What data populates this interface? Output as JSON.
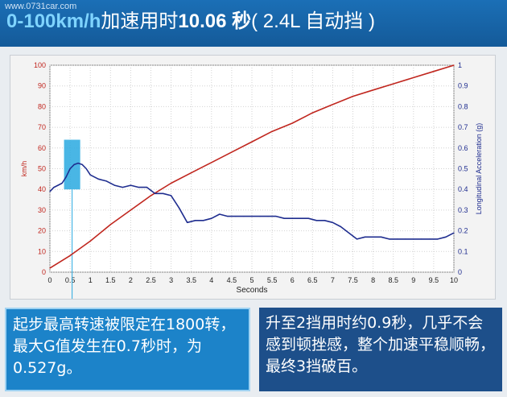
{
  "header": {
    "watermark": "www.0731car.com",
    "title_speed": "0-100km/h",
    "title_label": "加速用时",
    "title_time": "10.06 秒",
    "title_suffix": "( 2.4L 自动挡 )"
  },
  "captions": {
    "left": "起步最高转速被限定在1800转，最大G值发生在0.7秒时，为0.527g。",
    "right": "升至2挡用时约0.9秒，几乎不会感到顿挫感，整个加速平稳顺畅，最终3挡破百。"
  },
  "colors": {
    "speed_line": "#c0261e",
    "accel_line": "#1f2d8f",
    "left_axis": "#c0261e",
    "right_axis": "#1f2d8f",
    "highlight": "#29a9e0",
    "header_bg": "#1766a8"
  },
  "chart_data": {
    "type": "line",
    "xlabel": "Seconds",
    "ylabel_left": "km/h",
    "ylabel_right": "Longitudinal Acceleration (g)",
    "xlim": [
      0,
      10
    ],
    "ylim_left": [
      0,
      100
    ],
    "ylim_right": [
      0,
      1
    ],
    "x_ticks": [
      "0",
      "0.5",
      "1",
      "1.5",
      "2",
      "2.5",
      "3",
      "3.5",
      "4",
      "4.5",
      "5",
      "5.5",
      "6",
      "6.5",
      "7",
      "7.5",
      "8",
      "8.5",
      "9",
      "9.5",
      "10"
    ],
    "y_left_ticks": [
      "0",
      "10",
      "20",
      "30",
      "40",
      "50",
      "60",
      "70",
      "80",
      "90",
      "100"
    ],
    "y_right_ticks": [
      "0",
      "0.1",
      "0.2",
      "0.3",
      "0.4",
      "0.5",
      "0.6",
      "0.7",
      "0.8",
      "0.9",
      "1"
    ],
    "grid": true,
    "highlight": {
      "x_range": [
        0.35,
        0.75
      ],
      "y_range_right": [
        0.4,
        0.64
      ]
    },
    "series": [
      {
        "axis": "left",
        "x": [
          0,
          0.5,
          1,
          1.5,
          2,
          2.5,
          3,
          3.5,
          4,
          4.5,
          5,
          5.5,
          6,
          6.5,
          7,
          7.5,
          8,
          8.5,
          9,
          9.5,
          10
        ],
        "values": [
          2,
          8,
          15,
          23,
          30,
          37,
          43,
          48,
          53,
          58,
          63,
          68,
          72,
          77,
          81,
          85,
          88,
          91,
          94,
          97,
          100
        ]
      },
      {
        "axis": "right",
        "x": [
          0,
          0.1,
          0.2,
          0.3,
          0.4,
          0.5,
          0.6,
          0.7,
          0.8,
          0.9,
          1.0,
          1.2,
          1.4,
          1.6,
          1.8,
          2.0,
          2.2,
          2.4,
          2.6,
          2.8,
          3.0,
          3.2,
          3.4,
          3.6,
          3.8,
          4.0,
          4.2,
          4.4,
          4.6,
          4.8,
          5.0,
          5.2,
          5.4,
          5.6,
          5.8,
          6.0,
          6.2,
          6.4,
          6.6,
          6.8,
          7.0,
          7.2,
          7.4,
          7.6,
          7.8,
          8.0,
          8.2,
          8.4,
          8.6,
          8.8,
          9.0,
          9.2,
          9.4,
          9.6,
          9.8,
          10.0
        ],
        "values": [
          0.39,
          0.41,
          0.42,
          0.43,
          0.46,
          0.5,
          0.52,
          0.527,
          0.52,
          0.5,
          0.47,
          0.45,
          0.44,
          0.42,
          0.41,
          0.42,
          0.41,
          0.41,
          0.38,
          0.38,
          0.37,
          0.31,
          0.24,
          0.25,
          0.25,
          0.26,
          0.28,
          0.27,
          0.27,
          0.27,
          0.27,
          0.27,
          0.27,
          0.27,
          0.26,
          0.26,
          0.26,
          0.26,
          0.25,
          0.25,
          0.24,
          0.22,
          0.19,
          0.16,
          0.17,
          0.17,
          0.17,
          0.16,
          0.16,
          0.16,
          0.16,
          0.16,
          0.16,
          0.16,
          0.17,
          0.19
        ]
      }
    ]
  }
}
